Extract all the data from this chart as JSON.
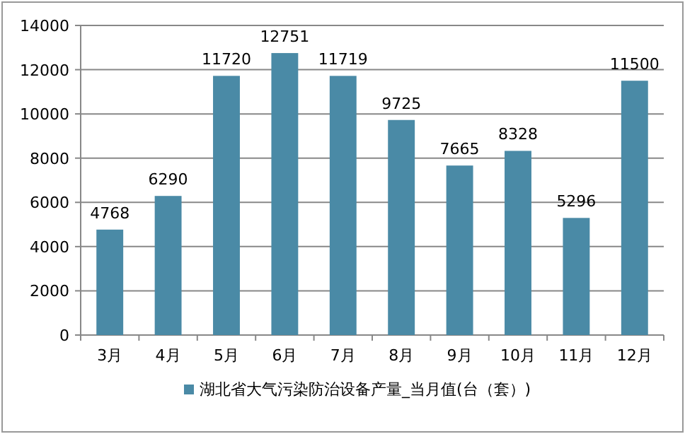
{
  "chart_data": {
    "type": "bar",
    "categories": [
      "3月",
      "4月",
      "5月",
      "6月",
      "7月",
      "8月",
      "9月",
      "10月",
      "11月",
      "12月"
    ],
    "series": [
      {
        "name": "湖北省大气污染防治设备产量_当月值(台（套）)",
        "color": "#4a8aa6",
        "values": [
          4768,
          6290,
          11720,
          12751,
          11719,
          9725,
          7665,
          8328,
          5296,
          11500
        ]
      }
    ],
    "ylim": [
      0,
      14000
    ],
    "yticks": [
      0,
      2000,
      4000,
      6000,
      8000,
      10000,
      12000,
      14000
    ],
    "grid": "y",
    "data_labels": true,
    "legend": "bottom"
  }
}
